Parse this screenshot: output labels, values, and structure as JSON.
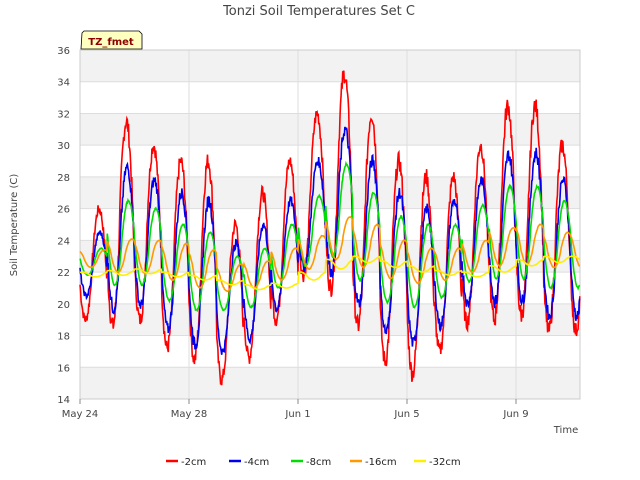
{
  "chart_data": {
    "type": "line",
    "title": "Tonzi Soil Temperatures Set C",
    "xlabel": "Time",
    "ylabel": "Soil Temperature (C)",
    "site_label": "TZ_fmet",
    "ylim": [
      14,
      36
    ],
    "yticks": [
      14,
      16,
      18,
      20,
      22,
      24,
      26,
      28,
      30,
      32,
      34,
      36
    ],
    "xlim": [
      "May 24",
      "Jun 12"
    ],
    "xticks": [
      "May 24",
      "May 28",
      "Jun 1",
      "Jun 5",
      "Jun 9"
    ],
    "grid": true,
    "legend_position": "bottom",
    "series": [
      {
        "name": "-2cm",
        "color": "#ff0000",
        "day_min": [
          19.0,
          18.6,
          19.0,
          17.2,
          16.5,
          15.2,
          16.6,
          19.0,
          21.8,
          21.0,
          18.6,
          16.4,
          15.6,
          17.0,
          18.8,
          19.0,
          19.3,
          18.3
        ],
        "day_max": [
          26.0,
          31.5,
          30.0,
          29.0,
          29.0,
          25.0,
          27.0,
          29.0,
          32.0,
          34.5,
          32.0,
          29.0,
          28.0,
          28.0,
          30.0,
          32.5,
          32.5,
          30.0
        ]
      },
      {
        "name": "-4cm",
        "color": "#0000ee",
        "day_min": [
          20.5,
          19.7,
          19.9,
          18.4,
          17.4,
          17.0,
          17.8,
          19.7,
          22.3,
          22.0,
          20.0,
          18.2,
          17.5,
          18.6,
          20.0,
          20.1,
          20.2,
          19.2
        ],
        "day_max": [
          24.5,
          28.6,
          27.8,
          27.0,
          26.5,
          23.8,
          25.0,
          26.5,
          29.0,
          31.0,
          29.0,
          27.0,
          26.0,
          26.5,
          27.8,
          29.4,
          29.5,
          27.8
        ]
      },
      {
        "name": "-8cm",
        "color": "#00dd00",
        "day_min": [
          21.8,
          21.2,
          21.2,
          20.2,
          19.6,
          19.6,
          19.8,
          21.0,
          22.4,
          23.0,
          21.5,
          20.1,
          19.8,
          20.4,
          21.4,
          21.6,
          21.6,
          21.0
        ],
        "day_max": [
          23.5,
          26.5,
          26.0,
          25.0,
          24.5,
          23.0,
          23.5,
          25.0,
          26.8,
          28.8,
          27.0,
          25.5,
          25.0,
          25.0,
          26.2,
          27.4,
          27.4,
          26.5
        ]
      },
      {
        "name": "-16cm",
        "color": "#ff9900",
        "day_min": [
          22.3,
          22.0,
          21.9,
          21.5,
          21.0,
          20.8,
          21.0,
          21.5,
          22.2,
          22.8,
          22.3,
          21.6,
          21.3,
          21.5,
          22.0,
          22.4,
          22.5,
          22.3
        ],
        "day_max": [
          23.4,
          24.1,
          24.0,
          23.8,
          23.4,
          22.5,
          22.7,
          23.5,
          24.3,
          25.5,
          25.0,
          24.0,
          23.5,
          23.5,
          24.0,
          24.8,
          25.0,
          24.5
        ]
      },
      {
        "name": "-32cm",
        "color": "#ffee00",
        "day_min": [
          21.7,
          21.8,
          21.9,
          21.7,
          21.5,
          21.2,
          20.9,
          21.0,
          21.5,
          22.2,
          22.6,
          22.3,
          22.0,
          21.8,
          21.7,
          22.0,
          22.4,
          22.6
        ],
        "day_max": [
          22.0,
          22.1,
          22.2,
          22.0,
          21.8,
          21.5,
          21.2,
          21.3,
          22.0,
          22.8,
          23.0,
          22.7,
          22.4,
          22.1,
          22.0,
          22.4,
          22.8,
          23.0
        ]
      }
    ]
  }
}
